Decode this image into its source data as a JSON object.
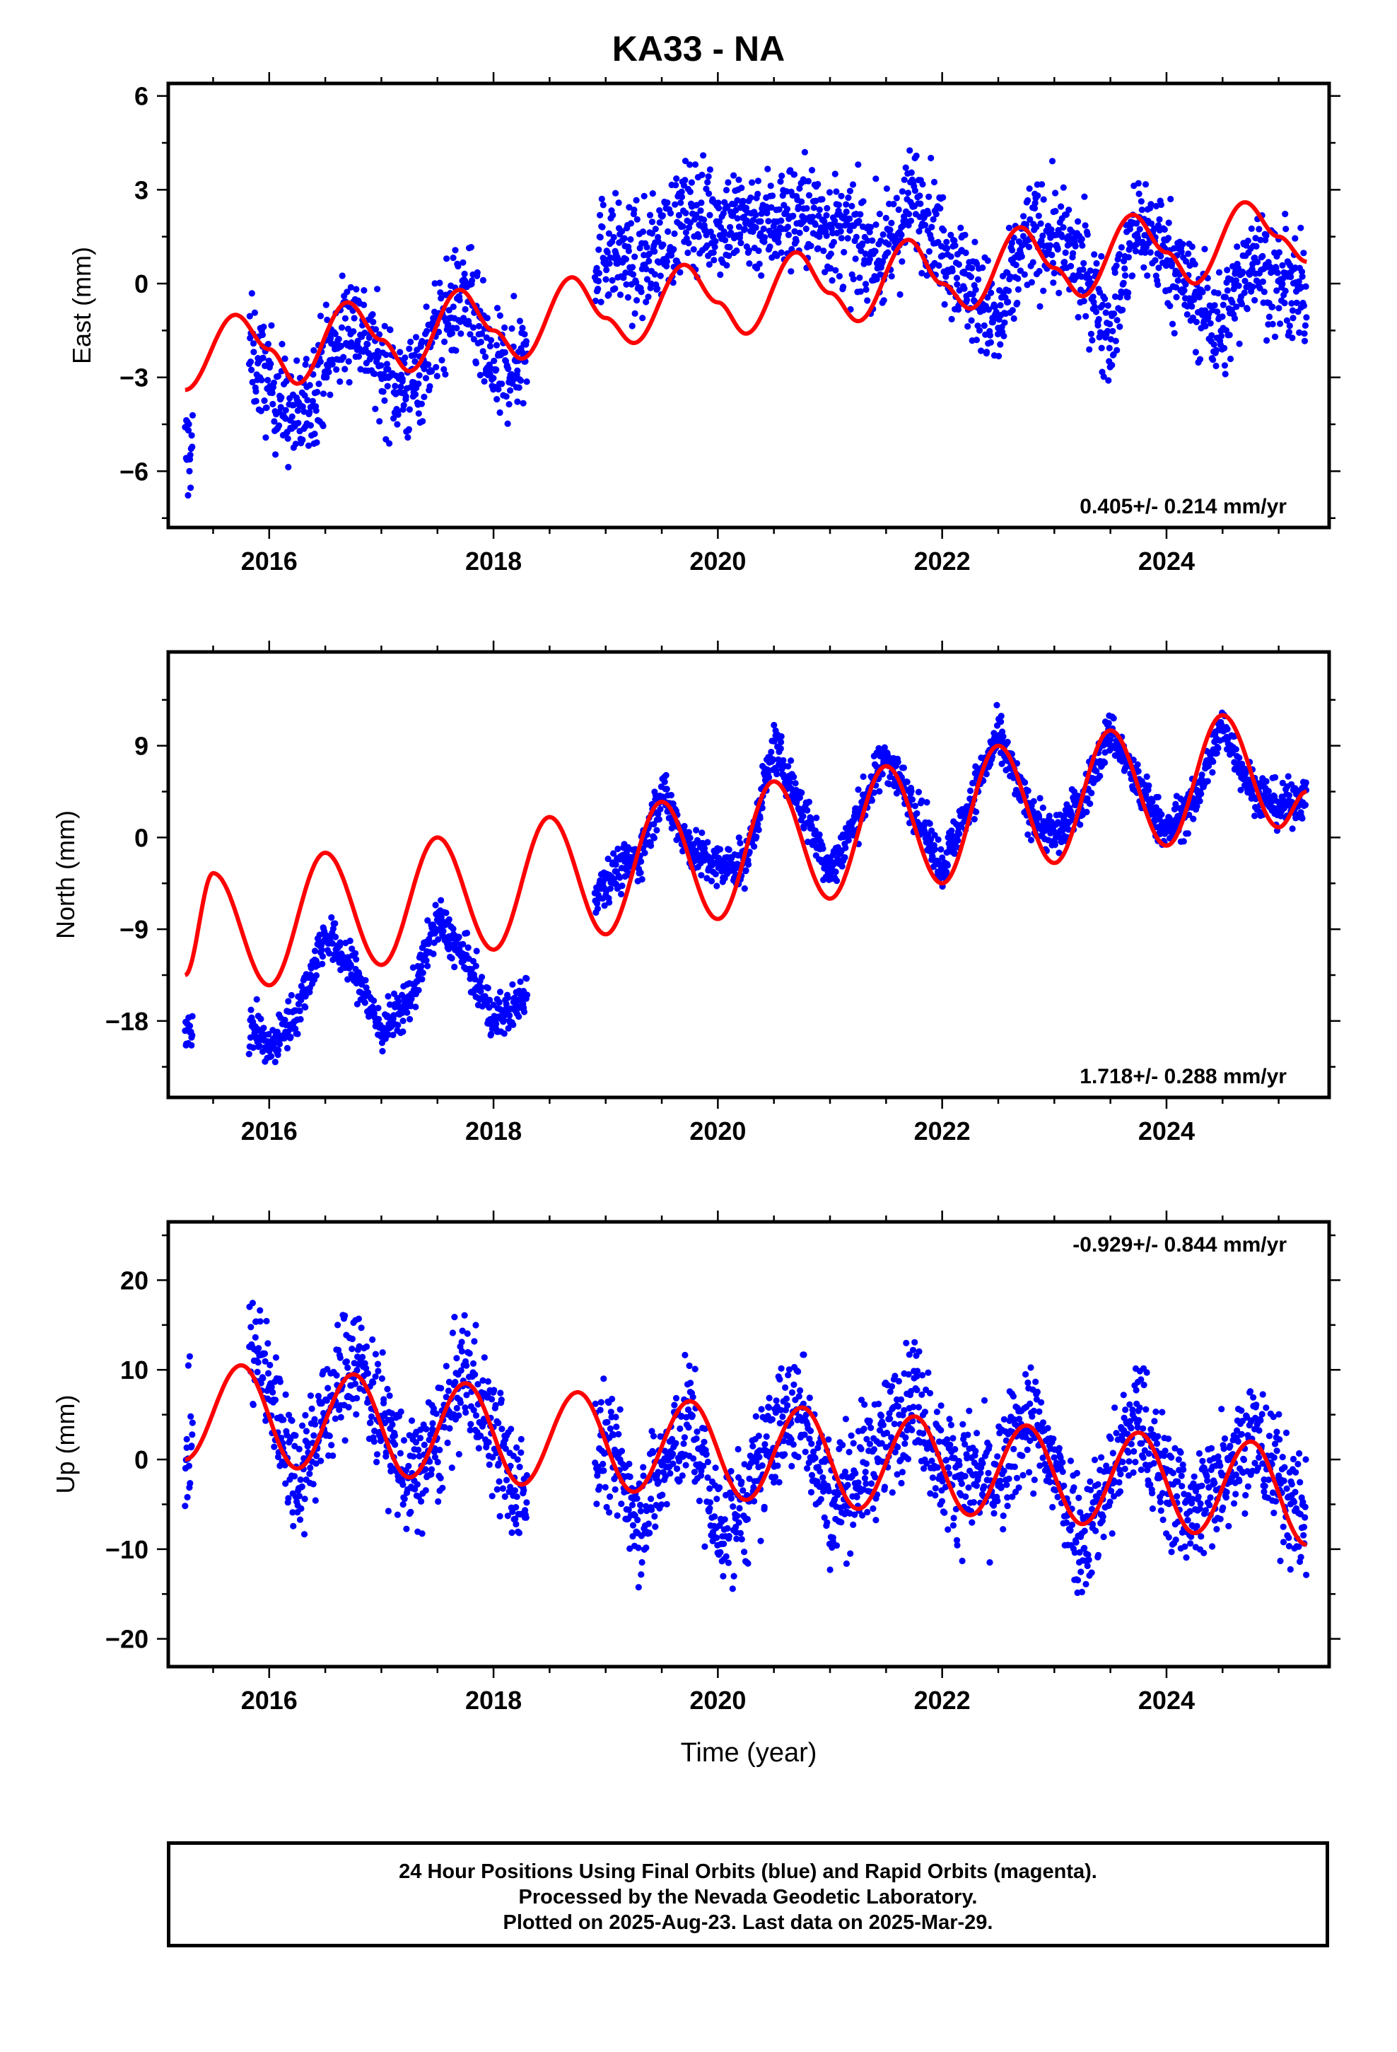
{
  "page_title": "KA33 - NA",
  "caption": {
    "line1": "24 Hour Positions Using Final Orbits (blue) and Rapid Orbits (magenta).",
    "line2": "Processed by the Nevada Geodetic Laboratory.",
    "line3": "Plotted on 2025-Aug-23. Last data on 2025-Mar-29."
  },
  "colors": {
    "points": "#0000ff",
    "model": "#ff0000",
    "frame": "#000000"
  },
  "chart_data": [
    {
      "type": "scatter",
      "panel": "east",
      "title": "KA33 - NA",
      "xlabel": "",
      "ylabel": "East (mm)",
      "xlim": [
        2015.1,
        2025.45
      ],
      "ylim": [
        -7.8,
        6.4
      ],
      "xticks": [
        2016,
        2018,
        2020,
        2022,
        2024
      ],
      "yticks": [
        -6,
        -3,
        0,
        3,
        6
      ],
      "rate_label": "0.405+/- 0.214 mm/yr",
      "rate_label_position": "bottom-right",
      "series": [
        {
          "kind": "points",
          "x": [
            2015.25,
            2015.8,
            2016.0,
            2016.25,
            2016.5,
            2016.75,
            2017.0,
            2017.25,
            2017.5,
            2017.75,
            2018.0,
            2018.2,
            2019.0,
            2019.3,
            2019.75,
            2020.0,
            2020.5,
            2020.75,
            2021.5,
            2021.75,
            2022.5,
            2022.75,
            2023.0,
            2023.25,
            2023.5,
            2023.75,
            2024.0,
            2024.25,
            2024.5,
            2024.75,
            2025.0,
            2025.25
          ],
          "y": [
            -5.5,
            -2.0,
            -3.2,
            -4.5,
            -2.5,
            -1.0,
            -2.7,
            -3.5,
            -1.5,
            -0.3,
            -3.0,
            -2.5,
            1.2,
            0.5,
            2.3,
            2.0,
            2.0,
            2.3,
            0.8,
            2.8,
            -1.5,
            1.5,
            1.5,
            0.5,
            -1.5,
            2.0,
            1.0,
            -0.5,
            -1.5,
            1.0,
            0.0,
            -0.5
          ]
        },
        {
          "kind": "model",
          "x": [
            2015.25,
            2015.7,
            2016.0,
            2016.25,
            2016.7,
            2017.0,
            2017.25,
            2017.7,
            2018.0,
            2018.25,
            2018.7,
            2019.0,
            2019.25,
            2019.7,
            2020.0,
            2020.25,
            2020.7,
            2021.0,
            2021.25,
            2021.7,
            2022.0,
            2022.25,
            2022.7,
            2023.0,
            2023.25,
            2023.7,
            2024.0,
            2024.25,
            2024.7,
            2025.0,
            2025.25
          ],
          "y": [
            -3.4,
            -1.0,
            -2.1,
            -3.2,
            -0.6,
            -1.8,
            -2.8,
            -0.2,
            -1.5,
            -2.4,
            0.2,
            -1.1,
            -1.9,
            0.6,
            -0.6,
            -1.6,
            1.0,
            -0.3,
            -1.2,
            1.4,
            0.0,
            -0.8,
            1.8,
            0.5,
            -0.4,
            2.2,
            1.0,
            0.0,
            2.6,
            1.5,
            0.7
          ]
        }
      ]
    },
    {
      "type": "scatter",
      "panel": "north",
      "xlabel": "",
      "ylabel": "North (mm)",
      "xlim": [
        2015.1,
        2025.45
      ],
      "ylim": [
        -25.5,
        18.2
      ],
      "xticks": [
        2016,
        2018,
        2020,
        2022,
        2024
      ],
      "yticks": [
        -18,
        -9,
        0,
        9
      ],
      "rate_label": "1.718+/- 0.288 mm/yr",
      "rate_label_position": "bottom-right",
      "series": [
        {
          "kind": "points",
          "x": [
            2015.25,
            2015.9,
            2016.0,
            2016.25,
            2016.5,
            2016.75,
            2017.0,
            2017.25,
            2017.5,
            2017.75,
            2018.0,
            2018.2,
            2019.0,
            2019.3,
            2019.5,
            2019.75,
            2020.0,
            2020.25,
            2020.5,
            2020.75,
            2021.0,
            2021.5,
            2021.75,
            2022.0,
            2022.5,
            2022.75,
            2023.0,
            2023.25,
            2023.5,
            2023.75,
            2024.0,
            2024.25,
            2024.5,
            2024.75,
            2025.0,
            2025.25
          ],
          "y": [
            -18.5,
            -19.0,
            -21.0,
            -17.0,
            -9.5,
            -13.0,
            -19.0,
            -16.0,
            -8.0,
            -12.0,
            -18.0,
            -16.5,
            -4.0,
            -2.0,
            4.5,
            -1.0,
            -3.0,
            -2.5,
            9.0,
            3.0,
            -3.5,
            8.0,
            3.0,
            -3.0,
            10.0,
            3.0,
            0.0,
            3.5,
            10.5,
            5.0,
            0.5,
            3.5,
            11.0,
            5.0,
            3.0,
            4.0
          ]
        },
        {
          "kind": "model",
          "x": [
            2015.25,
            2015.5,
            2016.0,
            2016.5,
            2017.0,
            2017.5,
            2018.0,
            2018.5,
            2019.0,
            2019.5,
            2020.0,
            2020.5,
            2021.0,
            2021.5,
            2022.0,
            2022.5,
            2023.0,
            2023.5,
            2024.0,
            2024.5,
            2025.0,
            2025.25
          ],
          "y": [
            -13.5,
            -3.5,
            -14.5,
            -1.5,
            -12.5,
            0.0,
            -11.0,
            2.0,
            -9.5,
            3.5,
            -8.0,
            5.5,
            -6.0,
            7.0,
            -4.5,
            9.0,
            -2.5,
            10.5,
            -0.8,
            12.0,
            1.0,
            4.5
          ]
        }
      ]
    },
    {
      "type": "scatter",
      "panel": "up",
      "xlabel": "Time (year)",
      "ylabel": "Up (mm)",
      "xlim": [
        2015.1,
        2025.45
      ],
      "ylim": [
        -23.1,
        26.5
      ],
      "xticks": [
        2016,
        2018,
        2020,
        2022,
        2024
      ],
      "yticks": [
        -20,
        -10,
        0,
        10,
        20
      ],
      "rate_label": "-0.929+/- 0.844 mm/yr",
      "rate_label_position": "top-right",
      "series": [
        {
          "kind": "points",
          "x": [
            2015.25,
            2015.8,
            2016.0,
            2016.25,
            2016.5,
            2016.75,
            2017.0,
            2017.25,
            2017.5,
            2017.75,
            2018.0,
            2018.2,
            2019.0,
            2019.3,
            2019.6,
            2019.75,
            2020.0,
            2020.25,
            2020.5,
            2020.75,
            2021.0,
            2021.5,
            2021.75,
            2022.0,
            2022.5,
            2022.75,
            2023.0,
            2023.25,
            2023.5,
            2023.75,
            2024.0,
            2024.25,
            2024.5,
            2024.75,
            2025.0,
            2025.25
          ],
          "y": [
            1.0,
            14.0,
            8.0,
            -2.0,
            5.0,
            12.0,
            5.0,
            -3.0,
            2.0,
            10.0,
            3.0,
            -4.0,
            2.0,
            -6.0,
            1.0,
            5.0,
            -8.0,
            -5.0,
            3.0,
            6.0,
            -5.0,
            2.0,
            8.0,
            -1.0,
            -3.0,
            5.0,
            -1.0,
            -9.0,
            -2.0,
            5.0,
            -3.0,
            -6.0,
            -1.0,
            3.0,
            -2.0,
            -8.0
          ]
        },
        {
          "kind": "model",
          "x": [
            2015.25,
            2015.75,
            2016.25,
            2016.75,
            2017.25,
            2017.75,
            2018.25,
            2018.75,
            2019.25,
            2019.75,
            2020.25,
            2020.75,
            2021.25,
            2021.75,
            2022.25,
            2022.75,
            2023.25,
            2023.75,
            2024.25,
            2024.75,
            2025.25
          ],
          "y": [
            0.0,
            10.5,
            -1.0,
            9.5,
            -2.0,
            8.5,
            -2.8,
            7.5,
            -3.6,
            6.5,
            -4.5,
            5.8,
            -5.5,
            4.8,
            -6.2,
            3.8,
            -7.2,
            3.0,
            -8.2,
            2.0,
            -9.5
          ]
        }
      ]
    }
  ]
}
